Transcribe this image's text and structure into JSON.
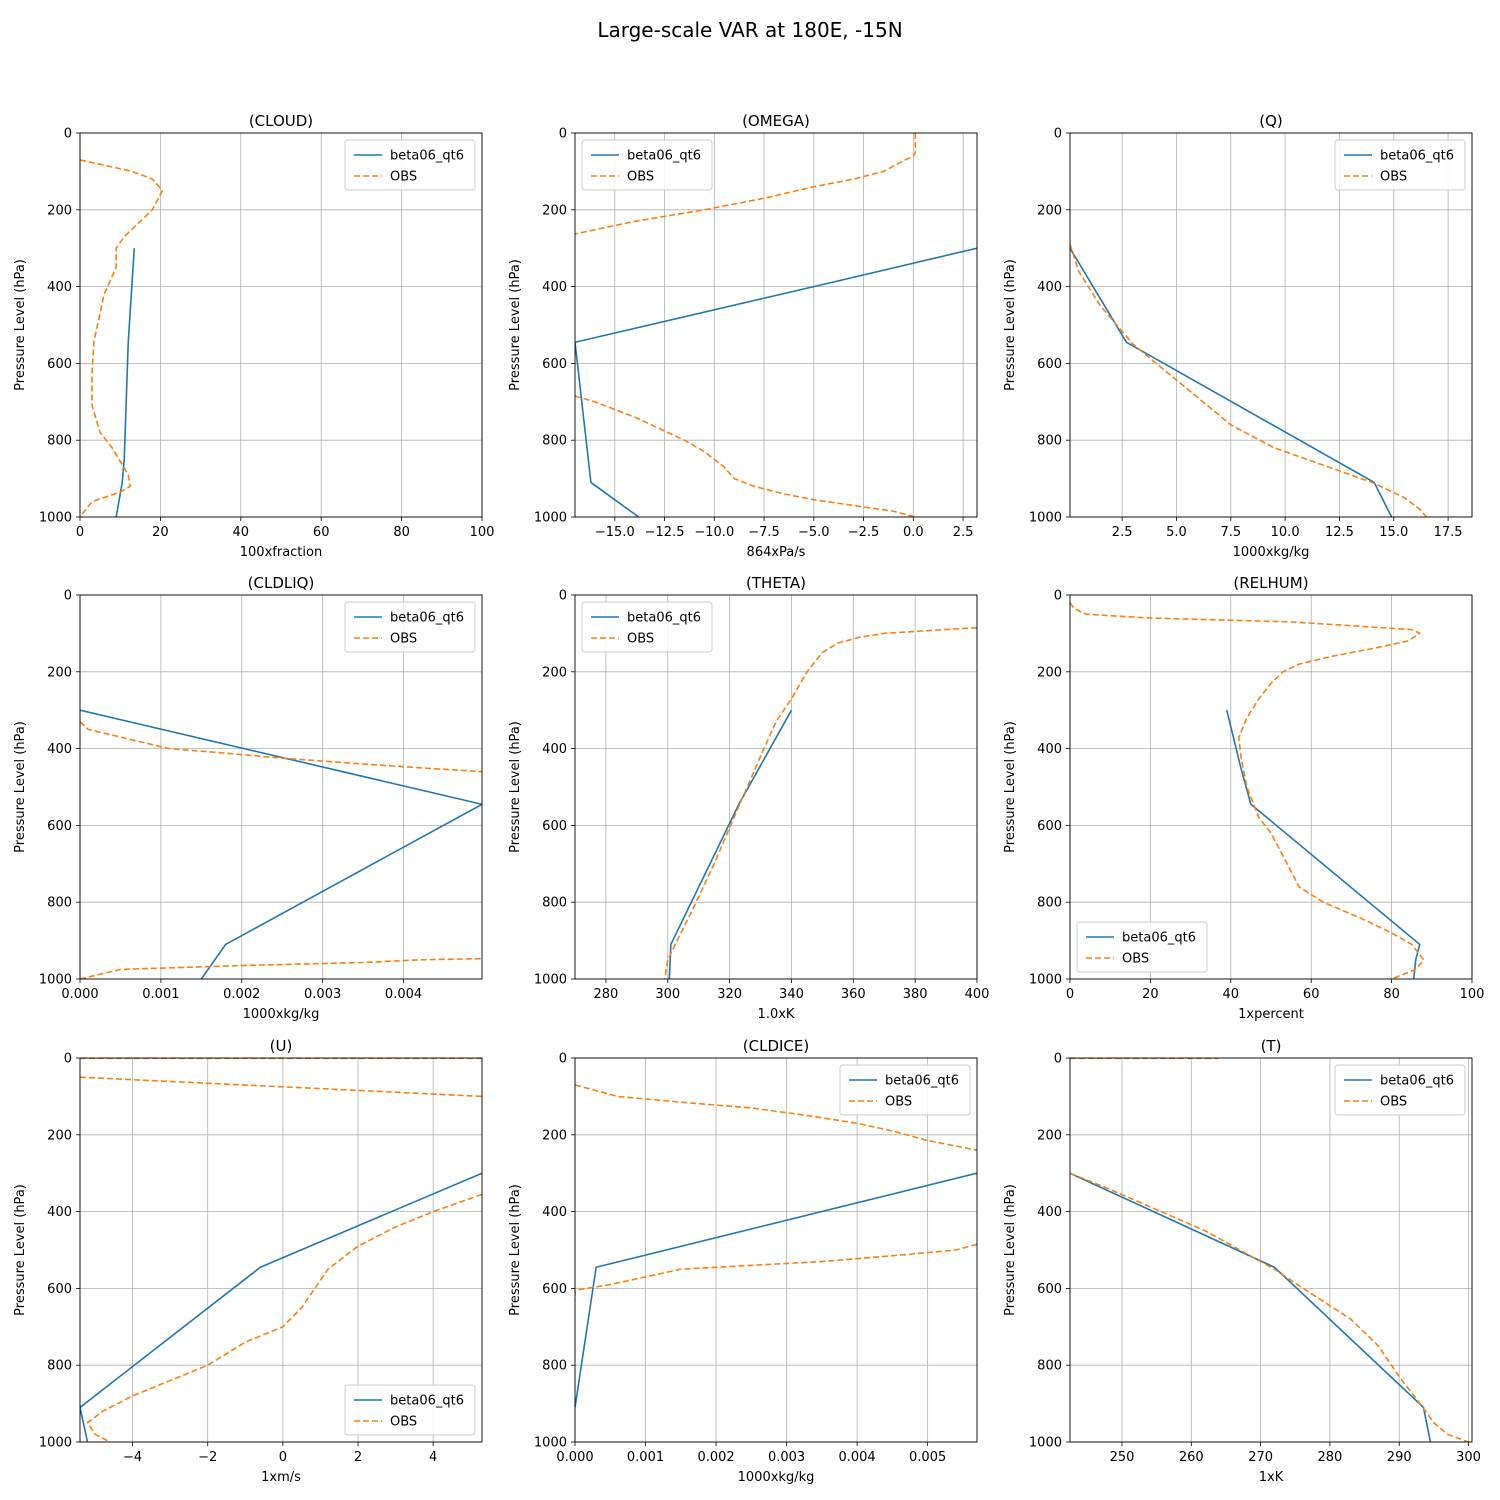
{
  "figure": {
    "title": "Large-scale VAR at 180E, -15N"
  },
  "colors": {
    "model": "#1f77b4",
    "obs": "#ff7f0e",
    "grid": "#b0b0b0"
  },
  "chart_data": [
    {
      "type": "line",
      "title": "(CLOUD)",
      "xlabel": "100xfraction",
      "ylabel": "Pressure Level (hPa)",
      "xlim": [
        0,
        100
      ],
      "ylim": [
        1000,
        0
      ],
      "xticks": [
        0,
        20,
        40,
        60,
        80,
        100
      ],
      "xtick_labels": [
        "0",
        "20",
        "40",
        "60",
        "80",
        "100"
      ],
      "yticks": [
        0,
        200,
        400,
        600,
        800,
        1000
      ],
      "ytick_labels": [
        "0",
        "200",
        "400",
        "600",
        "800",
        "1000"
      ],
      "legend": "upper-right",
      "series": [
        {
          "name": "beta06_qt6",
          "style": "solid",
          "x": [
            13.5,
            12,
            11,
            10.5,
            9
          ],
          "y": [
            300,
            545,
            850,
            910,
            1000
          ]
        },
        {
          "name": "OBS",
          "style": "dashed",
          "x": [
            0,
            13,
            18,
            20.5,
            18,
            14,
            11,
            9,
            9,
            6,
            5,
            3.5,
            3,
            3,
            5,
            8,
            12,
            12.5,
            10,
            3,
            0
          ],
          "y": [
            70,
            100,
            120,
            150,
            200,
            240,
            270,
            300,
            350,
            420,
            470,
            540,
            620,
            710,
            780,
            820,
            890,
            920,
            935,
            960,
            1000
          ]
        }
      ]
    },
    {
      "type": "line",
      "title": "(OMEGA)",
      "xlabel": "864xPa/s",
      "ylabel": "Pressure Level (hPa)",
      "xlim": [
        -17.0,
        3.2
      ],
      "ylim": [
        1000,
        0
      ],
      "xticks": [
        -15,
        -12.5,
        -10,
        -7.5,
        -5,
        -2.5,
        0,
        2.5
      ],
      "xtick_labels": [
        "−15.0",
        "−12.5",
        "−10.0",
        "−7.5",
        "−5.0",
        "−2.5",
        "0.0",
        "2.5"
      ],
      "yticks": [
        0,
        200,
        400,
        600,
        800,
        1000
      ],
      "ytick_labels": [
        "0",
        "200",
        "400",
        "600",
        "800",
        "1000"
      ],
      "legend": "upper-left",
      "series": [
        {
          "name": "beta06_qt6",
          "style": "solid",
          "x": [
            3.2,
            -5,
            -17.0,
            -16.2,
            -13.8
          ],
          "y": [
            300,
            400,
            545,
            910,
            1000
          ]
        },
        {
          "name": "OBS",
          "style": "dashed",
          "x": [
            0.1,
            0.1,
            0,
            -0.4,
            -1.5,
            -3,
            -5,
            -7.5,
            -10.5,
            -14,
            -17.0
          ],
          "y": [
            0,
            50,
            60,
            70,
            100,
            120,
            140,
            170,
            200,
            230,
            263
          ]
        },
        {
          "name": "",
          "style": "dashed",
          "x": [
            -17.0,
            -16,
            -14,
            -11.5,
            -10.5,
            -9.5,
            -9,
            -8,
            -6.5,
            -5,
            -3,
            -1,
            0.1
          ],
          "y": [
            685,
            700,
            740,
            800,
            830,
            870,
            900,
            920,
            940,
            955,
            970,
            985,
            1000
          ]
        }
      ]
    },
    {
      "type": "line",
      "title": "(Q)",
      "xlabel": "1000xkg/kg",
      "ylabel": "Pressure Level (hPa)",
      "xlim": [
        0.1,
        18.6
      ],
      "ylim": [
        1000,
        0
      ],
      "xticks": [
        2.5,
        5,
        7.5,
        10,
        12.5,
        15,
        17.5
      ],
      "xtick_labels": [
        "2.5",
        "5.0",
        "7.5",
        "10.0",
        "12.5",
        "15.0",
        "17.5"
      ],
      "yticks": [
        0,
        200,
        400,
        600,
        800,
        1000
      ],
      "ytick_labels": [
        "0",
        "200",
        "400",
        "600",
        "800",
        "1000"
      ],
      "legend": "upper-right",
      "series": [
        {
          "name": "beta06_qt6",
          "style": "solid",
          "x": [
            0.1,
            2.7,
            14.1,
            14.9
          ],
          "y": [
            300,
            545,
            910,
            1000
          ]
        },
        {
          "name": "OBS",
          "style": "dashed",
          "x": [
            0.1,
            0.5,
            1.5,
            3,
            4.5,
            6,
            7.5,
            9.5,
            11.5,
            14,
            15.5,
            16.2,
            16.5
          ],
          "y": [
            290,
            360,
            450,
            550,
            620,
            690,
            760,
            820,
            860,
            910,
            950,
            980,
            1000
          ]
        }
      ]
    },
    {
      "type": "line",
      "title": "(CLDLIQ)",
      "xlabel": "1000xkg/kg",
      "ylabel": "Pressure Level (hPa)",
      "xlim": [
        0,
        0.00497
      ],
      "ylim": [
        1000,
        0
      ],
      "xticks": [
        0,
        0.001,
        0.002,
        0.003,
        0.004
      ],
      "xtick_labels": [
        "0.000",
        "0.001",
        "0.002",
        "0.003",
        "0.004"
      ],
      "yticks": [
        0,
        200,
        400,
        600,
        800,
        1000
      ],
      "ytick_labels": [
        "0",
        "200",
        "400",
        "600",
        "800",
        "1000"
      ],
      "legend": "upper-right",
      "series": [
        {
          "name": "beta06_qt6",
          "style": "solid",
          "x": [
            0,
            0.00497,
            0.0018,
            0.0015
          ],
          "y": [
            300,
            545,
            910,
            1000
          ]
        },
        {
          "name": "OBS",
          "style": "dashed",
          "x": [
            0,
            0.0001,
            0.0005,
            0.0011,
            0.0017,
            0.0025,
            0.0035,
            0.0042,
            0.00497
          ],
          "y": [
            330,
            350,
            370,
            400,
            410,
            425,
            440,
            450,
            460
          ]
        },
        {
          "name": "",
          "style": "dashed",
          "x": [
            0,
            0.0005,
            0.002,
            0.0035,
            0.0042,
            0.00497
          ],
          "y": [
            1000,
            975,
            965,
            957,
            950,
            947
          ]
        }
      ]
    },
    {
      "type": "line",
      "title": "(THETA)",
      "xlabel": "1.0xK",
      "ylabel": "Pressure Level (hPa)",
      "xlim": [
        270,
        400
      ],
      "ylim": [
        1000,
        0
      ],
      "xticks": [
        280,
        300,
        320,
        340,
        360,
        380,
        400
      ],
      "xtick_labels": [
        "280",
        "300",
        "320",
        "340",
        "360",
        "380",
        "400"
      ],
      "yticks": [
        0,
        200,
        400,
        600,
        800,
        1000
      ],
      "ytick_labels": [
        "0",
        "200",
        "400",
        "600",
        "800",
        "1000"
      ],
      "legend": "upper-left",
      "series": [
        {
          "name": "beta06_qt6",
          "style": "solid",
          "x": [
            340,
            323,
            301,
            300.5
          ],
          "y": [
            300,
            545,
            910,
            1000
          ]
        },
        {
          "name": "OBS",
          "style": "dashed",
          "x": [
            400,
            370,
            362,
            355,
            350,
            345,
            340,
            335,
            330,
            323,
            315,
            308,
            303,
            300,
            299
          ],
          "y": [
            85,
            100,
            110,
            125,
            150,
            200,
            270,
            330,
            420,
            550,
            700,
            820,
            900,
            950,
            1000
          ]
        }
      ]
    },
    {
      "type": "line",
      "title": "(RELHUM)",
      "xlabel": "1xpercent",
      "ylabel": "Pressure Level (hPa)",
      "xlim": [
        0,
        100
      ],
      "ylim": [
        1000,
        0
      ],
      "xticks": [
        0,
        20,
        40,
        60,
        80,
        100
      ],
      "xtick_labels": [
        "0",
        "20",
        "40",
        "60",
        "80",
        "100"
      ],
      "yticks": [
        0,
        200,
        400,
        600,
        800,
        1000
      ],
      "ytick_labels": [
        "0",
        "200",
        "400",
        "600",
        "800",
        "1000"
      ],
      "legend": "lower-left",
      "series": [
        {
          "name": "beta06_qt6",
          "style": "solid",
          "x": [
            39,
            42.5,
            45,
            87,
            86,
            85.5
          ],
          "y": [
            300,
            450,
            545,
            910,
            950,
            1000
          ]
        },
        {
          "name": "OBS",
          "style": "dashed",
          "x": [
            0,
            1,
            4,
            20,
            55,
            85,
            87,
            84,
            75,
            65,
            57,
            53,
            50,
            47,
            44,
            42,
            42.5,
            44,
            47,
            50,
            52,
            54,
            57,
            63,
            72,
            80,
            85,
            88,
            86,
            80
          ],
          "y": [
            20,
            35,
            50,
            60,
            70,
            90,
            100,
            120,
            140,
            160,
            180,
            200,
            230,
            270,
            320,
            370,
            420,
            500,
            580,
            620,
            660,
            700,
            760,
            800,
            840,
            880,
            910,
            950,
            975,
            1000
          ]
        }
      ]
    },
    {
      "type": "line",
      "title": "(U)",
      "xlabel": "1xm/s",
      "ylabel": "Pressure Level (hPa)",
      "xlim": [
        -5.4,
        5.3
      ],
      "ylim": [
        1000,
        0
      ],
      "xticks": [
        -4,
        -2,
        0,
        2,
        4
      ],
      "xtick_labels": [
        "−4",
        "−2",
        "0",
        "2",
        "4"
      ],
      "yticks": [
        0,
        200,
        400,
        600,
        800,
        1000
      ],
      "ytick_labels": [
        "0",
        "200",
        "400",
        "600",
        "800",
        "1000"
      ],
      "legend": "lower-right",
      "series": [
        {
          "name": "beta06_qt6",
          "style": "solid",
          "x": [
            5.3,
            -0.6,
            -5.4,
            -5.2
          ],
          "y": [
            300,
            545,
            910,
            1000
          ]
        },
        {
          "name": "OBS",
          "style": "dashed",
          "x": [
            -5.4,
            5.3
          ],
          "y": [
            1,
            1
          ]
        },
        {
          "name": "",
          "style": "dashed",
          "x": [
            -5.4,
            0,
            5.3
          ],
          "y": [
            50,
            75,
            100
          ]
        },
        {
          "name": "",
          "style": "dashed",
          "x": [
            5.3,
            4,
            3,
            2,
            1.2,
            0.5,
            0,
            -1,
            -2,
            -3,
            -4,
            -4.8,
            -5.2,
            -5,
            -4.6
          ],
          "y": [
            355,
            400,
            440,
            490,
            550,
            650,
            700,
            740,
            800,
            840,
            880,
            920,
            950,
            980,
            1000
          ]
        }
      ]
    },
    {
      "type": "line",
      "title": "(CLDICE)",
      "xlabel": "1000xkg/kg",
      "ylabel": "Pressure Level (hPa)",
      "xlim": [
        0,
        0.0057
      ],
      "ylim": [
        1000,
        0
      ],
      "xticks": [
        0,
        0.001,
        0.002,
        0.003,
        0.004,
        0.005
      ],
      "xtick_labels": [
        "0.000",
        "0.001",
        "0.002",
        "0.003",
        "0.004",
        "0.005"
      ],
      "yticks": [
        0,
        200,
        400,
        600,
        800,
        1000
      ],
      "ytick_labels": [
        "0",
        "200",
        "400",
        "600",
        "800",
        "1000"
      ],
      "legend": "upper-right",
      "series": [
        {
          "name": "beta06_qt6",
          "style": "solid",
          "x": [
            0.0057,
            0.0003,
            0
          ],
          "y": [
            300,
            545,
            910
          ]
        },
        {
          "name": "OBS",
          "style": "dashed",
          "x": [
            0,
            0.0003,
            0.0006,
            0.0015,
            0.0025,
            0.0033,
            0.004,
            0.0045,
            0.005,
            0.0057
          ],
          "y": [
            70,
            85,
            100,
            115,
            130,
            150,
            170,
            190,
            215,
            240
          ]
        },
        {
          "name": "",
          "style": "dashed",
          "x": [
            0.0057,
            0.0054,
            0.0045,
            0.0035,
            0.0025,
            0.0015,
            0.001,
            0.0005,
            0,
            0
          ],
          "y": [
            485,
            500,
            515,
            530,
            540,
            550,
            570,
            590,
            605,
            630
          ]
        }
      ]
    },
    {
      "type": "line",
      "title": "(T)",
      "xlabel": "1xK",
      "ylabel": "Pressure Level (hPa)",
      "xlim": [
        242.5,
        300.5
      ],
      "ylim": [
        1000,
        0
      ],
      "xticks": [
        250,
        260,
        270,
        280,
        290,
        300
      ],
      "xtick_labels": [
        "250",
        "260",
        "270",
        "280",
        "290",
        "300"
      ],
      "yticks": [
        0,
        200,
        400,
        600,
        800,
        1000
      ],
      "ytick_labels": [
        "0",
        "200",
        "400",
        "600",
        "800",
        "1000"
      ],
      "legend": "upper-right",
      "series": [
        {
          "name": "beta06_qt6",
          "style": "solid",
          "x": [
            242.5,
            272,
            293.5,
            294.5
          ],
          "y": [
            300,
            545,
            910,
            1000
          ]
        },
        {
          "name": "OBS",
          "style": "dashed",
          "x": [
            242.5,
            264
          ],
          "y": [
            1,
            1
          ]
        },
        {
          "name": "",
          "style": "dashed",
          "x": [
            242.5,
            248,
            255,
            262,
            268,
            272,
            277,
            283,
            287,
            290,
            293,
            295,
            297,
            300
          ],
          "y": [
            300,
            340,
            395,
            450,
            510,
            550,
            610,
            680,
            750,
            830,
            900,
            950,
            980,
            1000
          ]
        }
      ]
    }
  ]
}
